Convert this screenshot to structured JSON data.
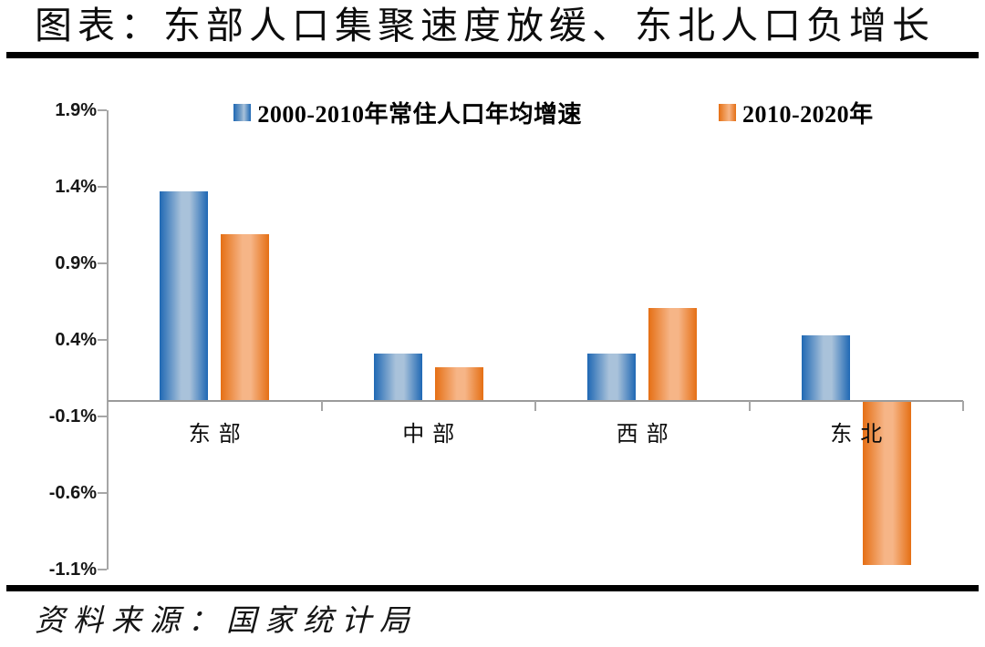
{
  "header": {
    "title": "图表：东部人口集聚速度放缓、东北人口负增长"
  },
  "footer": {
    "source": "资料来源：国家统计局"
  },
  "chart_data": {
    "type": "bar",
    "title": "图表：东部人口集聚速度放缓、东北人口负增长",
    "categories": [
      "东部",
      "中部",
      "西部",
      "东北"
    ],
    "series": [
      {
        "name": "2000-2010年常住人口年均增速",
        "color": "#1f68b4",
        "color_light": "#a9c2da",
        "values": [
          1.37,
          0.31,
          0.31,
          0.43
        ]
      },
      {
        "name": "2010-2020年",
        "color": "#e56f14",
        "color_light": "#f6b587",
        "values": [
          1.09,
          0.22,
          0.61,
          -1.07
        ]
      }
    ],
    "unit": "%",
    "ylim": [
      -1.1,
      1.9
    ],
    "ytick_labels": [
      "1.9%",
      "1.4%",
      "0.9%",
      "0.4%",
      "-0.1%",
      "-0.6%",
      "-1.1%"
    ],
    "ytick_step": 0.5,
    "grid": false,
    "legend_position": "top",
    "axis_color": "#a6a6a6",
    "source": "资料来源：国家统计局"
  }
}
